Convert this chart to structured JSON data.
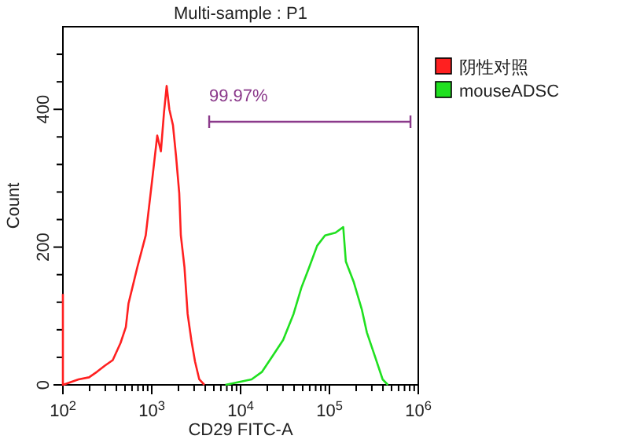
{
  "chart_data": {
    "type": "line",
    "title": "Multi-sample : P1",
    "xlabel": "CD29 FITC-A",
    "ylabel": "Count",
    "log": "x",
    "xlim": [
      100,
      1000000
    ],
    "ylim": [
      0,
      520
    ],
    "xticks": [
      {
        "value": 100,
        "label": "10$^{2}$"
      },
      {
        "value": 200,
        "label": null
      },
      {
        "value": 300,
        "label": null
      },
      {
        "value": 400,
        "label": null
      },
      {
        "value": 500,
        "label": null
      },
      {
        "value": 600,
        "label": null
      },
      {
        "value": 700,
        "label": null
      },
      {
        "value": 800,
        "label": null
      },
      {
        "value": 900,
        "label": null
      },
      {
        "value": 1000,
        "label": "10$^{3}$"
      },
      {
        "value": 2000,
        "label": null
      },
      {
        "value": 3000,
        "label": null
      },
      {
        "value": 4000,
        "label": null
      },
      {
        "value": 5000,
        "label": null
      },
      {
        "value": 6000,
        "label": null
      },
      {
        "value": 7000,
        "label": null
      },
      {
        "value": 8000,
        "label": null
      },
      {
        "value": 9000,
        "label": null
      },
      {
        "value": 10000,
        "label": "10$^{4}$"
      },
      {
        "value": 20000,
        "label": null
      },
      {
        "value": 30000,
        "label": null
      },
      {
        "value": 40000,
        "label": null
      },
      {
        "value": 50000,
        "label": null
      },
      {
        "value": 60000,
        "label": null
      },
      {
        "value": 70000,
        "label": null
      },
      {
        "value": 80000,
        "label": null
      },
      {
        "value": 90000,
        "label": null
      },
      {
        "value": 100000,
        "label": "10$^{5}$"
      },
      {
        "value": 200000,
        "label": null
      },
      {
        "value": 300000,
        "label": null
      },
      {
        "value": 400000,
        "label": null
      },
      {
        "value": 500000,
        "label": null
      },
      {
        "value": 600000,
        "label": null
      },
      {
        "value": 700000,
        "label": null
      },
      {
        "value": 800000,
        "label": null
      },
      {
        "value": 900000,
        "label": null
      },
      {
        "value": 1000000,
        "label": "10$^{6}$"
      }
    ],
    "yticks": [
      0,
      {
        "value": 40,
        "label": null
      },
      {
        "value": 80,
        "label": null
      },
      {
        "value": 120,
        "label": null
      },
      {
        "value": 160,
        "label": null
      },
      200,
      {
        "value": 240,
        "label": null
      },
      {
        "value": 280,
        "label": null
      },
      {
        "value": 320,
        "label": null
      },
      {
        "value": 360,
        "label": null
      },
      400,
      {
        "value": 440,
        "label": null
      },
      {
        "value": 480,
        "label": null
      }
    ],
    "grid": false,
    "legend": "right",
    "line_style": "solid",
    "series": [
      {
        "name": "阴性对照",
        "color": "#ff2020",
        "x": [
          100,
          100,
          150,
          197,
          242,
          297,
          364,
          446,
          511,
          547,
          626,
          689,
          768,
          856,
          1010,
          1153,
          1268,
          1375,
          1472,
          1578,
          1733,
          1880,
          2040,
          2125,
          2335,
          2535,
          2790,
          3070,
          3425,
          3915
        ],
        "values": [
          132,
          0,
          8,
          11,
          19,
          28,
          36,
          61,
          84,
          118,
          149,
          171,
          194,
          217,
          297,
          362,
          339,
          396,
          434,
          400,
          377,
          331,
          278,
          217,
          171,
          103,
          65,
          34,
          8,
          0
        ]
      },
      {
        "type": "line",
        "color": "#8b3a8b",
        "x": [
          4430,
          817000
        ],
        "values": [
          382,
          382
        ]
      },
      {
        "name": "mouseADSC",
        "color": "#20e020",
        "x": [
          6740,
          13300,
          17450,
          22900,
          30070,
          39450,
          48300,
          59300,
          72700,
          89200,
          117000,
          143000,
          153000,
          188000,
          231000,
          264000,
          324000,
          397000,
          455000
        ],
        "values": [
          0,
          8,
          19,
          42,
          65,
          103,
          141,
          171,
          202,
          217,
          221,
          229,
          179,
          149,
          110,
          76,
          42,
          8,
          0
        ]
      }
    ],
    "annotations": [
      "99.97%"
    ]
  }
}
